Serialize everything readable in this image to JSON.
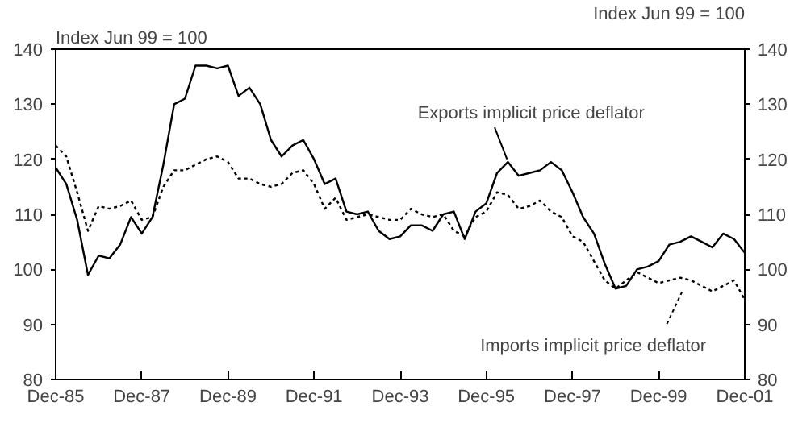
{
  "chart_data": {
    "type": "line",
    "ylabel": "Index Jun 99 = 100",
    "y2label": "Index Jun 99 = 100",
    "x": [
      "1985-12",
      "1986-03",
      "1986-06",
      "1986-09",
      "1986-12",
      "1987-03",
      "1987-06",
      "1987-09",
      "1987-12",
      "1988-03",
      "1988-06",
      "1988-09",
      "1988-12",
      "1989-03",
      "1989-06",
      "1989-09",
      "1989-12",
      "1990-03",
      "1990-06",
      "1990-09",
      "1990-12",
      "1991-03",
      "1991-06",
      "1991-09",
      "1991-12",
      "1992-03",
      "1992-06",
      "1992-09",
      "1992-12",
      "1993-03",
      "1993-06",
      "1993-09",
      "1993-12",
      "1994-03",
      "1994-06",
      "1994-09",
      "1994-12",
      "1995-03",
      "1995-06",
      "1995-09",
      "1995-12",
      "1996-03",
      "1996-06",
      "1996-09",
      "1996-12",
      "1997-03",
      "1997-06",
      "1997-09",
      "1997-12",
      "1998-03",
      "1998-06",
      "1998-09",
      "1998-12",
      "1999-03",
      "1999-06",
      "1999-09",
      "1999-12",
      "2000-03",
      "2000-06",
      "2000-09",
      "2000-12",
      "2001-03",
      "2001-06",
      "2001-09",
      "2001-12"
    ],
    "series": [
      {
        "name": "Exports implicit price deflator",
        "color": "#000000",
        "line_style": "solid",
        "values": [
          118.5,
          115.5,
          109,
          99,
          102.5,
          102,
          104.5,
          109.5,
          106.5,
          109.5,
          119,
          130,
          131,
          137,
          137,
          136.5,
          137,
          131.5,
          133,
          130,
          123.5,
          120.5,
          122.5,
          123.5,
          120,
          115.5,
          116.5,
          110.5,
          110,
          110.5,
          107,
          105.5,
          106,
          108,
          108,
          107,
          110,
          110.5,
          105.5,
          110.5,
          112,
          117.5,
          119.5,
          117,
          117.5,
          118,
          119.5,
          118,
          114,
          109.5,
          106.5,
          101,
          96.5,
          97,
          100,
          100.5,
          101.5,
          104.5,
          105,
          106,
          105,
          104,
          106.5,
          105.5,
          103
        ]
      },
      {
        "name": "Imports implicit price deflator",
        "color": "#000000",
        "line_style": "dotted",
        "values": [
          122.5,
          120.5,
          114,
          107,
          111.5,
          111,
          111.5,
          112.5,
          109,
          109.5,
          115,
          118,
          118,
          119,
          120,
          120.5,
          119.5,
          116.5,
          116.5,
          115.5,
          115,
          115.5,
          117.5,
          118,
          115.5,
          111,
          113,
          109,
          109.5,
          110,
          109.5,
          109,
          109,
          111,
          110,
          109.5,
          110,
          107,
          106,
          109.5,
          110.5,
          114,
          113.5,
          111,
          111.5,
          112.5,
          110.5,
          109.5,
          106,
          105,
          101.5,
          98,
          96.5,
          98,
          99.5,
          98.5,
          97.5,
          98,
          98.5,
          98,
          97,
          96,
          97,
          98,
          94.5
        ]
      }
    ],
    "xlim": [
      "1985-12",
      "2001-12"
    ],
    "xticks": [
      {
        "value": "1985-12",
        "label": "Dec-85"
      },
      {
        "value": "1987-12",
        "label": "Dec-87"
      },
      {
        "value": "1989-12",
        "label": "Dec-89"
      },
      {
        "value": "1991-12",
        "label": "Dec-91"
      },
      {
        "value": "1993-12",
        "label": "Dec-93"
      },
      {
        "value": "1995-12",
        "label": "Dec-95"
      },
      {
        "value": "1997-12",
        "label": "Dec-97"
      },
      {
        "value": "1999-12",
        "label": "Dec-99"
      },
      {
        "value": "2001-12",
        "label": "Dec-01"
      }
    ],
    "ylim": [
      80,
      140
    ],
    "yticks": [
      80,
      90,
      100,
      110,
      120,
      130,
      140
    ],
    "y2lim": [
      80,
      140
    ],
    "y2ticks": [
      80,
      90,
      100,
      110,
      120,
      130,
      140
    ],
    "grid": false
  }
}
